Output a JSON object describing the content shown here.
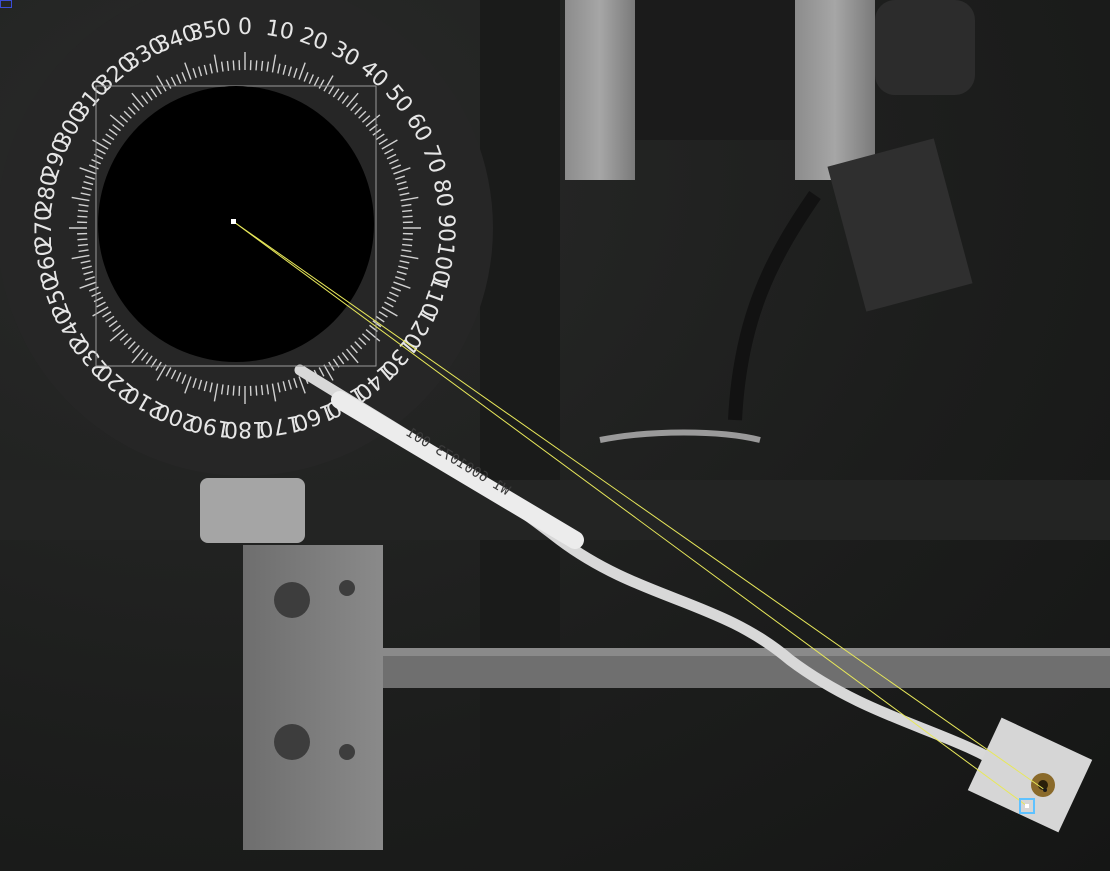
{
  "dial": {
    "labels": [
      "0",
      "10",
      "20",
      "30",
      "40",
      "50",
      "60",
      "70",
      "80",
      "90",
      "100",
      "110",
      "120",
      "130",
      "140",
      "150",
      "160",
      "170",
      "180",
      "190",
      "200",
      "210",
      "220",
      "230",
      "240",
      "250",
      "260",
      "270",
      "280",
      "290",
      "300",
      "310",
      "320",
      "330",
      "340",
      "350"
    ]
  },
  "cable": {
    "print_text": "W1 6001073 001"
  },
  "colors": {
    "overlay_line": "#e8e85a",
    "roi_box": "#9a9a9a",
    "mask": "#000000",
    "handle": "#5fc2ff",
    "corner_marker": "#3b4dd6"
  },
  "icons": {
    "center_point": "center-point-icon",
    "end_handle": "end-handle-icon"
  }
}
